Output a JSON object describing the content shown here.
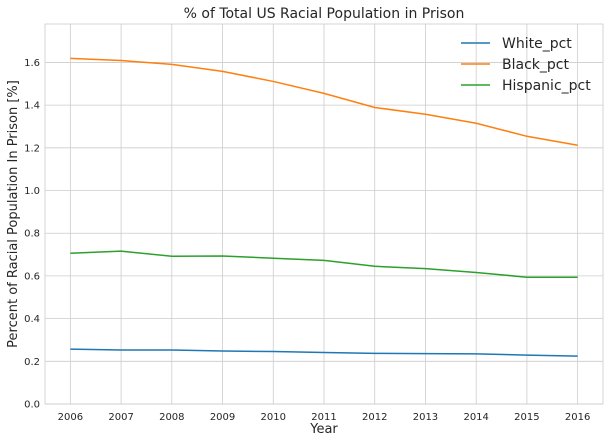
{
  "chart_data": {
    "type": "line",
    "title": "% of Total US Racial Population in Prison",
    "xlabel": "Year",
    "ylabel": "Percent of Racial Population In Prison [%]",
    "x": [
      2006,
      2007,
      2008,
      2009,
      2010,
      2011,
      2012,
      2013,
      2014,
      2015,
      2016
    ],
    "xlim": [
      2005.5,
      2016.5
    ],
    "ylim": [
      0,
      1.78
    ],
    "yticks": [
      0.0,
      0.2,
      0.4,
      0.6,
      0.8,
      1.0,
      1.2,
      1.4,
      1.6
    ],
    "grid": true,
    "legend_position": "top-right",
    "series": [
      {
        "name": "White_pct",
        "color": "#1f77b4",
        "values": [
          0.257,
          0.253,
          0.253,
          0.248,
          0.246,
          0.241,
          0.237,
          0.236,
          0.235,
          0.229,
          0.224
        ]
      },
      {
        "name": "Black_pct",
        "color": "#ff7f0e",
        "values": [
          1.619,
          1.609,
          1.591,
          1.558,
          1.511,
          1.455,
          1.389,
          1.357,
          1.315,
          1.254,
          1.212
        ]
      },
      {
        "name": "Hispanic_pct",
        "color": "#2ca02c",
        "values": [
          0.706,
          0.716,
          0.692,
          0.693,
          0.683,
          0.673,
          0.645,
          0.634,
          0.616,
          0.594,
          0.594
        ]
      }
    ]
  }
}
